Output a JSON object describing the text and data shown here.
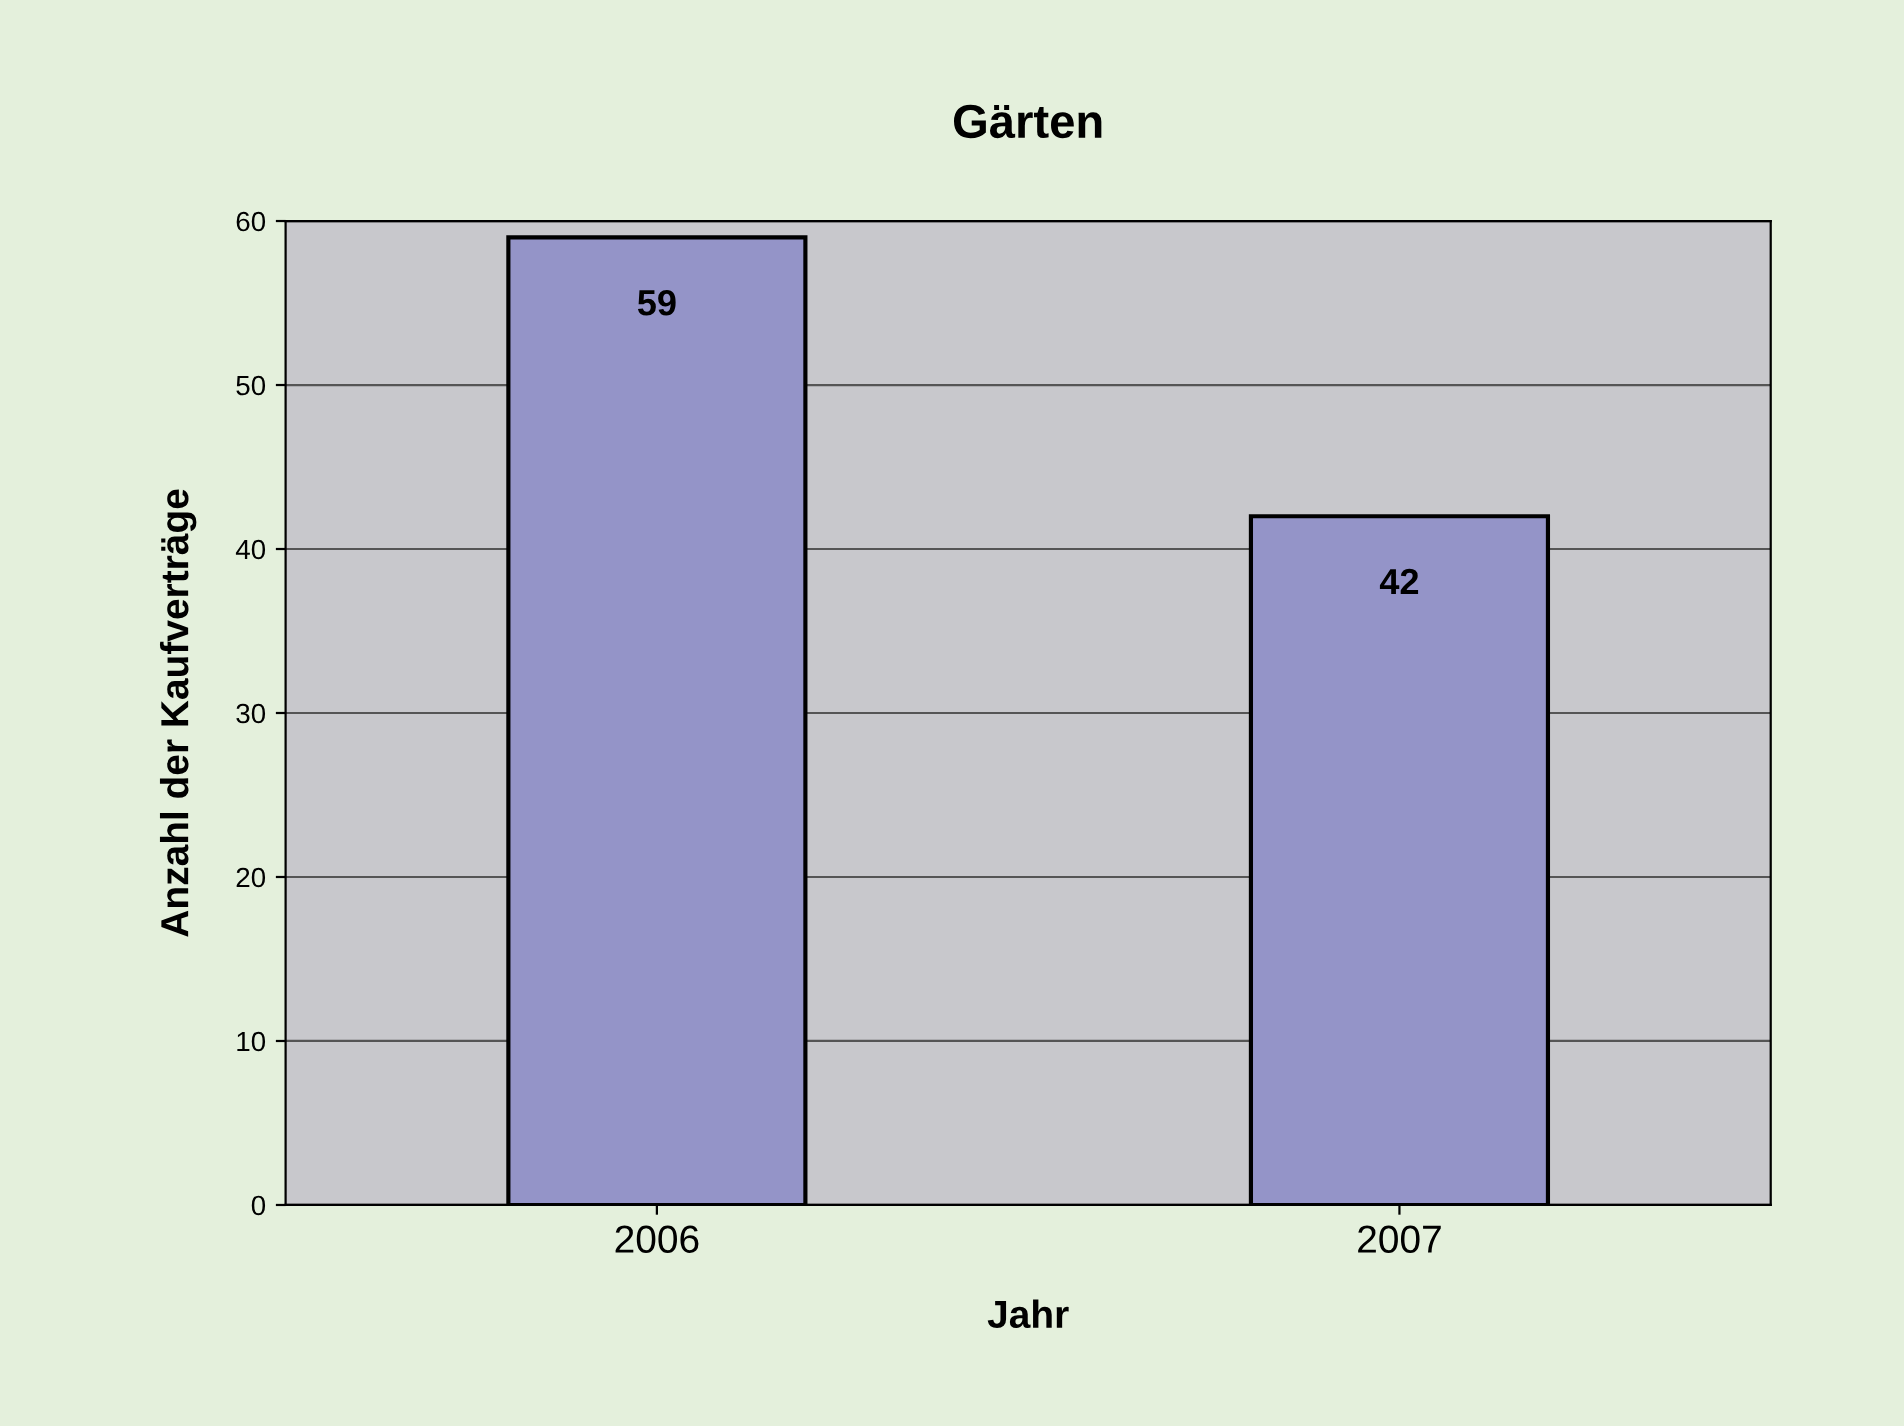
{
  "chart_data": {
    "type": "bar",
    "title": "Gärten",
    "xlabel": "Jahr",
    "ylabel": "Anzahl der Kaufverträge",
    "categories": [
      "2006",
      "2007"
    ],
    "values": [
      59,
      42
    ],
    "color": "#9494c8",
    "ylim": [
      0,
      60
    ],
    "yticks": [
      0,
      10,
      20,
      30,
      40,
      50,
      60
    ],
    "grid": "y",
    "data_labels": true
  }
}
